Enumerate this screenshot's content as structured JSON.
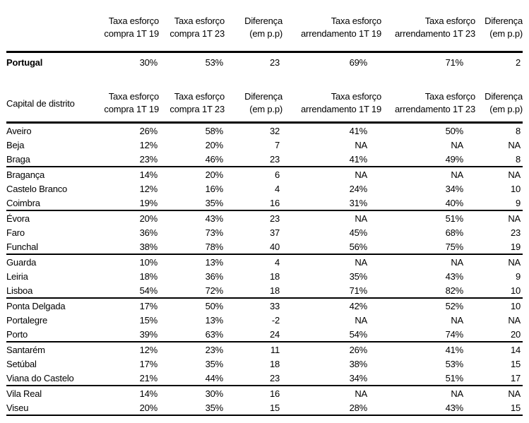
{
  "table": {
    "top_header_label": "",
    "district_header_label": "Capital de distrito",
    "columns": [
      {
        "line1": "Taxa esforço",
        "line2": "compra 1T 19"
      },
      {
        "line1": "Taxa esforço",
        "line2": "compra 1T 23"
      },
      {
        "line1": "Diferença",
        "line2": "(em p.p)"
      },
      {
        "line1": "Taxa esforço",
        "line2": "arrendamento 1T 19"
      },
      {
        "line1": "Taxa esforço",
        "line2": "arrendamento 1T 23"
      },
      {
        "line1": "Diferença",
        "line2": "(em p.p)"
      }
    ],
    "portugal": {
      "label": "Portugal",
      "values": [
        "30%",
        "53%",
        "23",
        "69%",
        "71%",
        "2"
      ]
    },
    "rows": [
      {
        "label": "Aveiro",
        "values": [
          "26%",
          "58%",
          "32",
          "41%",
          "50%",
          "8"
        ],
        "group_end": false
      },
      {
        "label": "Beja",
        "values": [
          "12%",
          "20%",
          "7",
          "NA",
          "NA",
          "NA"
        ],
        "group_end": false
      },
      {
        "label": "Braga",
        "values": [
          "23%",
          "46%",
          "23",
          "41%",
          "49%",
          "8"
        ],
        "group_end": true
      },
      {
        "label": "Bragança",
        "values": [
          "14%",
          "20%",
          "6",
          "NA",
          "NA",
          "NA"
        ],
        "group_end": false
      },
      {
        "label": "Castelo Branco",
        "values": [
          "12%",
          "16%",
          "4",
          "24%",
          "34%",
          "10"
        ],
        "group_end": false
      },
      {
        "label": "Coimbra",
        "values": [
          "19%",
          "35%",
          "16",
          "31%",
          "40%",
          "9"
        ],
        "group_end": true
      },
      {
        "label": "Évora",
        "values": [
          "20%",
          "43%",
          "23",
          "NA",
          "51%",
          "NA"
        ],
        "group_end": false
      },
      {
        "label": "Faro",
        "values": [
          "36%",
          "73%",
          "37",
          "45%",
          "68%",
          "23"
        ],
        "group_end": false
      },
      {
        "label": "Funchal",
        "values": [
          "38%",
          "78%",
          "40",
          "56%",
          "75%",
          "19"
        ],
        "group_end": true
      },
      {
        "label": "Guarda",
        "values": [
          "10%",
          "13%",
          "4",
          "NA",
          "NA",
          "NA"
        ],
        "group_end": false
      },
      {
        "label": "Leiria",
        "values": [
          "18%",
          "36%",
          "18",
          "35%",
          "43%",
          "9"
        ],
        "group_end": false
      },
      {
        "label": "Lisboa",
        "values": [
          "54%",
          "72%",
          "18",
          "71%",
          "82%",
          "10"
        ],
        "group_end": true
      },
      {
        "label": "Ponta Delgada",
        "values": [
          "17%",
          "50%",
          "33",
          "42%",
          "52%",
          "10"
        ],
        "group_end": false
      },
      {
        "label": "Portalegre",
        "values": [
          "15%",
          "13%",
          "-2",
          "NA",
          "NA",
          "NA"
        ],
        "group_end": false
      },
      {
        "label": "Porto",
        "values": [
          "39%",
          "63%",
          "24",
          "54%",
          "74%",
          "20"
        ],
        "group_end": true
      },
      {
        "label": "Santarém",
        "values": [
          "12%",
          "23%",
          "11",
          "26%",
          "41%",
          "14"
        ],
        "group_end": false
      },
      {
        "label": "Setúbal",
        "values": [
          "17%",
          "35%",
          "18",
          "38%",
          "53%",
          "15"
        ],
        "group_end": false
      },
      {
        "label": "Viana do Castelo",
        "values": [
          "21%",
          "44%",
          "23",
          "34%",
          "51%",
          "17"
        ],
        "group_end": true
      },
      {
        "label": "Vila Real",
        "values": [
          "14%",
          "30%",
          "16",
          "NA",
          "NA",
          "NA"
        ],
        "group_end": false
      },
      {
        "label": "Viseu",
        "values": [
          "20%",
          "35%",
          "15",
          "28%",
          "43%",
          "15"
        ],
        "group_end": true
      }
    ],
    "colors": {
      "text": "#000000",
      "border": "#000000",
      "background": "#ffffff"
    }
  }
}
